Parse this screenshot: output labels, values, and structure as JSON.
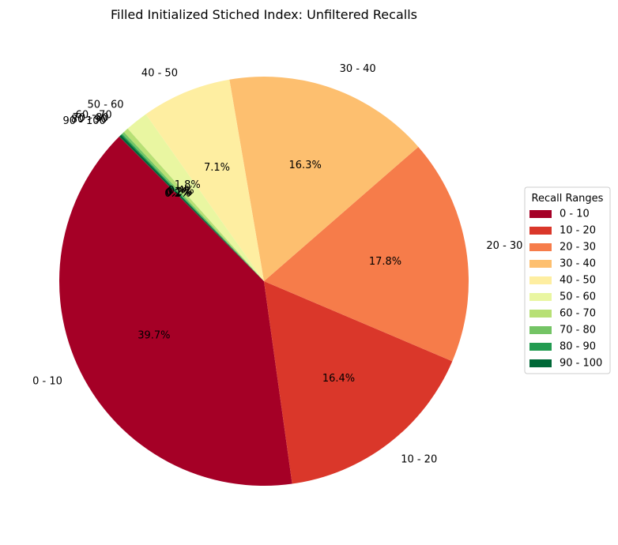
{
  "chart_data": {
    "type": "pie",
    "title": "Filled Initialized Stiched Index: Unfiltered Recalls",
    "categories": [
      "0 - 10",
      "10 - 20",
      "20 - 30",
      "30 - 40",
      "40 - 50",
      "50 - 60",
      "60 - 70",
      "70 - 80",
      "80 - 90",
      "90 - 100"
    ],
    "values": [
      39.7,
      16.4,
      17.8,
      16.3,
      7.1,
      1.8,
      0.4,
      0.2,
      0.1,
      0.2
    ],
    "percent_labels": [
      "39.7%",
      "16.4%",
      "17.8%",
      "16.3%",
      "7.1%",
      "1.8%",
      "0.4%",
      "0.2%",
      "0.1%",
      "0.2%"
    ],
    "colors": [
      "#a50026",
      "#da372a",
      "#f67c4a",
      "#fdbf6f",
      "#feeea1",
      "#e9f6a1",
      "#b7e075",
      "#74c465",
      "#229b51",
      "#006837"
    ],
    "legend": {
      "title": "Recall Ranges",
      "placement": "center-right"
    },
    "start_angle_deg": 135,
    "direction": "counterclockwise"
  }
}
